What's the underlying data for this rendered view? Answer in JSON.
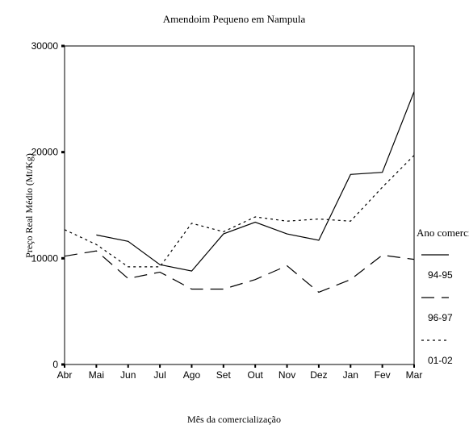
{
  "chart_data": {
    "type": "line",
    "title": "Amendoim Pequeno em Nampula",
    "x_label": "Mês da comercialização",
    "y_label": "Preço Real Médio (Mt/Kg)",
    "categories": [
      "Abr",
      "Mai",
      "Jun",
      "Jul",
      "Ago",
      "Set",
      "Out",
      "Nov",
      "Dez",
      "Jan",
      "Fev",
      "Mar"
    ],
    "legend_title": "Ano comercial",
    "series": [
      {
        "name": "94-95",
        "color": "#000000",
        "dash": "solid",
        "values": [
          null,
          12200,
          11600,
          9400,
          8800,
          12300,
          13400,
          12300,
          11700,
          17900,
          18100,
          25700
        ]
      },
      {
        "name": "96-97",
        "color": "#000000",
        "dash": "long",
        "values": [
          10200,
          10700,
          8100,
          8700,
          7100,
          7100,
          8000,
          9300,
          6800,
          8000,
          10300,
          9900
        ]
      },
      {
        "name": "01-02",
        "color": "#000000",
        "dash": "dotted",
        "values": [
          12700,
          11300,
          9200,
          9200,
          13300,
          12500,
          13900,
          13500,
          13700,
          13500,
          16700,
          19700
        ]
      }
    ],
    "ylim": [
      0,
      30000
    ],
    "yticks": [
      0,
      10000,
      20000,
      30000
    ],
    "legend": "right"
  }
}
